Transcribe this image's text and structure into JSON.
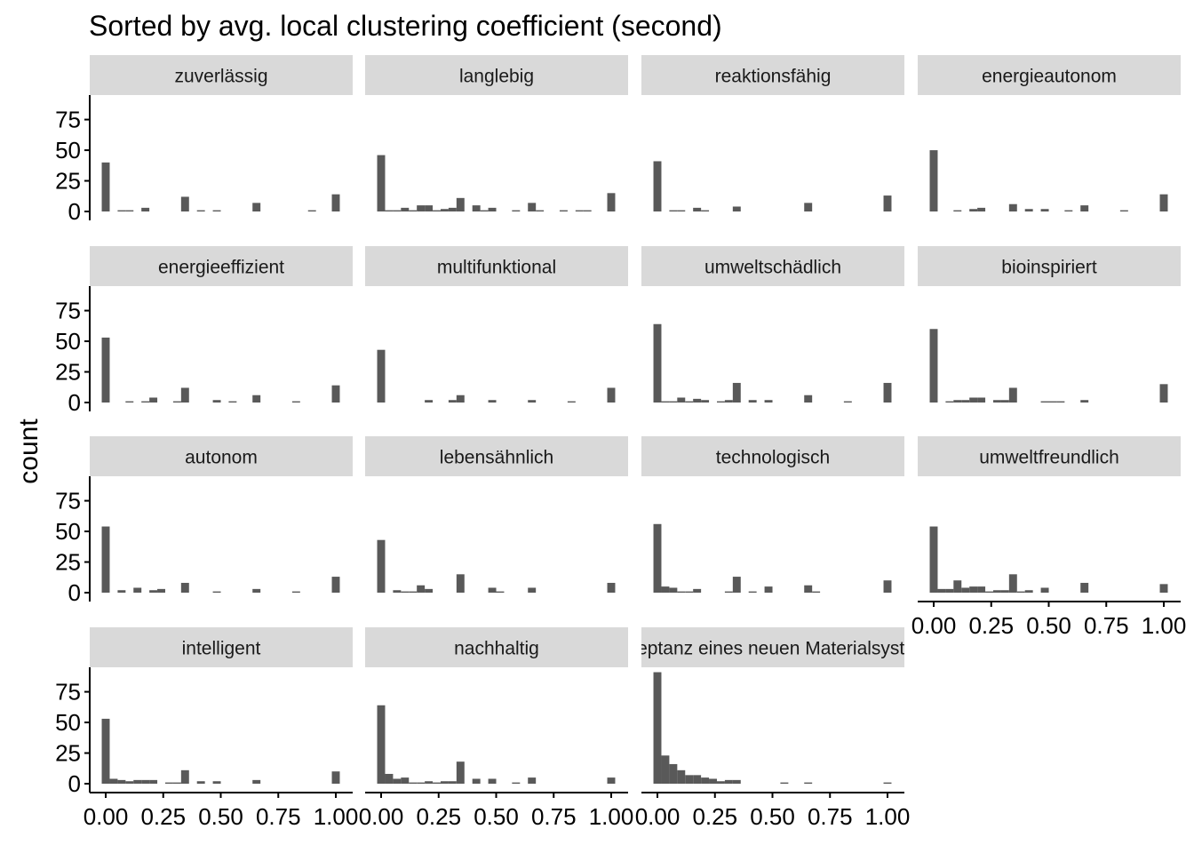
{
  "chart_data": {
    "type": "bar",
    "title": "Sorted by avg. local clustering coefficient (second)",
    "xlabel": "",
    "ylabel": "count",
    "xlim": [
      0,
      1
    ],
    "ylim": [
      0,
      95
    ],
    "xticks": [
      "0.00",
      "0.25",
      "0.50",
      "0.75",
      "1.00"
    ],
    "yticks": [
      "0",
      "25",
      "50",
      "75"
    ],
    "grid": false,
    "bins": [
      0.0,
      0.0345,
      0.069,
      0.1034,
      0.1379,
      0.1724,
      0.2069,
      0.2414,
      0.2759,
      0.3103,
      0.3448,
      0.3793,
      0.4138,
      0.4483,
      0.4828,
      0.5172,
      0.5517,
      0.5862,
      0.6207,
      0.6552,
      0.6897,
      0.7241,
      0.7586,
      0.7931,
      0.8276,
      0.8621,
      0.8966,
      0.931,
      0.9655,
      1.0
    ],
    "panels": [
      {
        "name": "zuverlässig",
        "values": [
          40,
          0,
          1,
          1,
          0,
          3,
          0,
          0,
          0,
          0,
          12,
          0,
          1,
          0,
          1,
          0,
          0,
          0,
          0,
          7,
          0,
          0,
          0,
          0,
          0,
          0,
          1,
          0,
          0,
          14
        ]
      },
      {
        "name": "langlebig",
        "values": [
          46,
          1,
          1,
          3,
          1,
          5,
          5,
          1,
          2,
          3,
          11,
          0,
          5,
          1,
          3,
          0,
          0,
          1,
          0,
          7,
          1,
          0,
          0,
          1,
          0,
          1,
          1,
          0,
          0,
          15
        ]
      },
      {
        "name": "reaktionsfähig",
        "values": [
          41,
          0,
          1,
          1,
          0,
          3,
          1,
          0,
          0,
          0,
          4,
          0,
          0,
          0,
          0,
          0,
          0,
          0,
          0,
          7,
          0,
          0,
          0,
          0,
          0,
          0,
          0,
          0,
          0,
          13
        ]
      },
      {
        "name": "energieautonom",
        "values": [
          50,
          0,
          0,
          1,
          0,
          2,
          3,
          0,
          0,
          0,
          6,
          0,
          2,
          0,
          2,
          0,
          0,
          1,
          0,
          5,
          0,
          0,
          0,
          0,
          1,
          0,
          0,
          0,
          0,
          14
        ]
      },
      {
        "name": "energieeffizient",
        "values": [
          53,
          0,
          0,
          1,
          0,
          1,
          4,
          0,
          0,
          1,
          12,
          0,
          0,
          0,
          2,
          0,
          1,
          0,
          0,
          6,
          0,
          0,
          0,
          0,
          1,
          0,
          0,
          0,
          0,
          14
        ]
      },
      {
        "name": "multifunktional",
        "values": [
          43,
          0,
          0,
          0,
          0,
          0,
          2,
          0,
          0,
          2,
          6,
          0,
          0,
          0,
          2,
          0,
          0,
          0,
          0,
          2,
          0,
          0,
          0,
          0,
          1,
          0,
          0,
          0,
          0,
          12
        ]
      },
      {
        "name": "umweltschädlich",
        "values": [
          64,
          1,
          1,
          4,
          1,
          3,
          2,
          0,
          1,
          2,
          16,
          0,
          2,
          0,
          2,
          0,
          0,
          0,
          0,
          6,
          0,
          0,
          0,
          0,
          1,
          0,
          0,
          0,
          0,
          16
        ]
      },
      {
        "name": "bioinspiriert",
        "values": [
          60,
          0,
          1,
          2,
          2,
          4,
          4,
          0,
          2,
          2,
          12,
          0,
          0,
          0,
          1,
          1,
          1,
          0,
          0,
          2,
          0,
          0,
          0,
          0,
          0,
          0,
          0,
          0,
          0,
          15
        ]
      },
      {
        "name": "autonom",
        "values": [
          54,
          0,
          2,
          0,
          4,
          0,
          2,
          3,
          0,
          0,
          8,
          0,
          0,
          0,
          1,
          0,
          0,
          0,
          0,
          3,
          0,
          0,
          0,
          0,
          1,
          0,
          0,
          0,
          0,
          13
        ]
      },
      {
        "name": "lebensähnlich",
        "values": [
          43,
          0,
          2,
          1,
          1,
          6,
          3,
          0,
          0,
          0,
          15,
          0,
          0,
          0,
          4,
          1,
          0,
          0,
          0,
          4,
          0,
          0,
          0,
          0,
          0,
          0,
          0,
          0,
          0,
          8
        ]
      },
      {
        "name": "technologisch",
        "values": [
          56,
          5,
          4,
          1,
          1,
          3,
          0,
          0,
          0,
          1,
          13,
          0,
          1,
          0,
          5,
          0,
          0,
          0,
          0,
          6,
          1,
          0,
          0,
          0,
          0,
          0,
          0,
          0,
          0,
          10
        ]
      },
      {
        "name": "umweltfreundlich",
        "values": [
          54,
          3,
          3,
          10,
          4,
          5,
          5,
          1,
          2,
          2,
          15,
          1,
          2,
          0,
          4,
          0,
          0,
          0,
          0,
          8,
          0,
          0,
          0,
          0,
          0,
          0,
          0,
          0,
          0,
          7
        ]
      },
      {
        "name": "intelligent",
        "values": [
          53,
          4,
          3,
          2,
          3,
          3,
          3,
          0,
          1,
          1,
          11,
          0,
          2,
          0,
          2,
          0,
          0,
          0,
          0,
          3,
          0,
          0,
          0,
          0,
          0,
          0,
          0,
          0,
          0,
          10
        ]
      },
      {
        "name": "nachhaltig",
        "values": [
          64,
          8,
          4,
          5,
          1,
          1,
          2,
          1,
          2,
          2,
          18,
          0,
          4,
          0,
          4,
          0,
          0,
          1,
          0,
          5,
          0,
          0,
          0,
          0,
          0,
          0,
          0,
          0,
          0,
          5
        ]
      },
      {
        "name": "Akzeptanz eines neuen Materialsystems",
        "values": [
          91,
          23,
          16,
          11,
          7,
          7,
          5,
          4,
          2,
          3,
          3,
          0,
          0,
          0,
          0,
          0,
          1,
          0,
          0,
          1,
          0,
          0,
          0,
          0,
          0,
          0,
          0,
          0,
          0,
          1
        ]
      }
    ]
  }
}
